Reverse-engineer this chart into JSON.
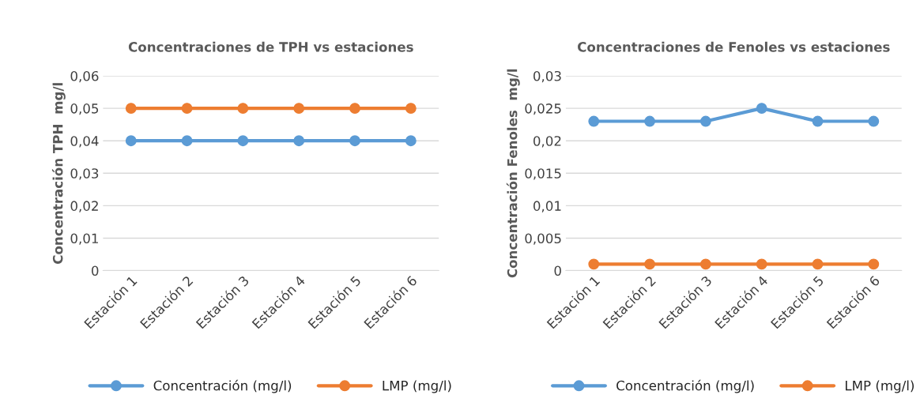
{
  "chart_data": [
    {
      "type": "line",
      "title": "Concentraciones de TPH vs estaciones",
      "ylabel": "Concentración TPH  mg/l",
      "categories": [
        "Estación 1",
        "Estación 2",
        "Estación 3",
        "Estación 4",
        "Estación 5",
        "Estación 6"
      ],
      "series": [
        {
          "name": "Concentración (mg/l)",
          "color": "#5b9bd5",
          "values": [
            0.04,
            0.04,
            0.04,
            0.04,
            0.04,
            0.04
          ]
        },
        {
          "name": "LMP (mg/l)",
          "color": "#ed7d31",
          "values": [
            0.05,
            0.05,
            0.05,
            0.05,
            0.05,
            0.05
          ]
        }
      ],
      "ylim": [
        0,
        0.06
      ],
      "yticks": [
        0,
        {
          "value": 0.01,
          "label": "0,01"
        },
        {
          "value": 0.02,
          "label": "0,02"
        },
        {
          "value": 0.03,
          "label": "0,03"
        },
        {
          "value": 0.04,
          "label": "0,04"
        },
        {
          "value": 0.05,
          "label": "0,05"
        },
        {
          "value": 0.06,
          "label": "0,06"
        }
      ],
      "grid": "y",
      "legend": "bottom",
      "marker": "circle",
      "line_style": "solid"
    },
    {
      "type": "line",
      "title": "Concentraciones de Fenoles vs estaciones",
      "ylabel": "Concentración Fenoles  mg/l",
      "categories": [
        "Estación 1",
        "Estación 2",
        "Estación 3",
        "Estación 4",
        "Estación 5",
        "Estación 6"
      ],
      "series": [
        {
          "name": "Concentración (mg/l)",
          "color": "#5b9bd5",
          "values": [
            0.023,
            0.023,
            0.023,
            0.025,
            0.023,
            0.023
          ]
        },
        {
          "name": "LMP (mg/l)",
          "color": "#ed7d31",
          "values": [
            0.001,
            0.001,
            0.001,
            0.001,
            0.001,
            0.001
          ]
        }
      ],
      "ylim": [
        0,
        0.03
      ],
      "yticks": [
        0,
        {
          "value": 0.005,
          "label": "0,005"
        },
        {
          "value": 0.01,
          "label": "0,01"
        },
        {
          "value": 0.015,
          "label": "0,015"
        },
        {
          "value": 0.02,
          "label": "0,02"
        },
        {
          "value": 0.025,
          "label": "0,025"
        },
        {
          "value": 0.03,
          "label": "0,03"
        }
      ],
      "grid": "y",
      "legend": "bottom",
      "marker": "circle",
      "line_style": "solid"
    }
  ]
}
